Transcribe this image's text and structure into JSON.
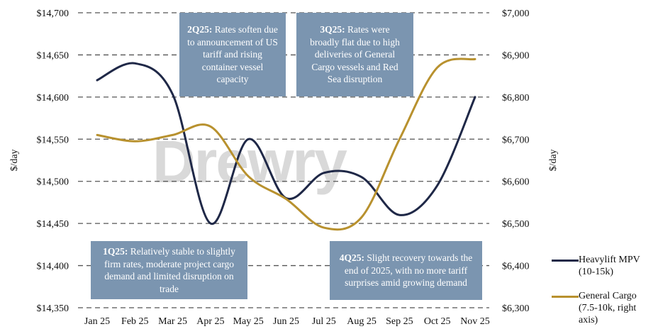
{
  "chart_data": {
    "type": "line",
    "title": "",
    "categories": [
      "Jan 25",
      "Feb 25",
      "Mar 25",
      "Apr 25",
      "May 25",
      "Jun 25",
      "Jul 25",
      "Aug 25",
      "Sep 25",
      "Oct 25",
      "Nov 25"
    ],
    "ylabel": "$/day",
    "y2label": "$/day",
    "ylim": [
      14350,
      14700
    ],
    "y2lim": [
      6300,
      7000
    ],
    "yticks": [
      "$14,350",
      "$14,400",
      "$14,450",
      "$14,500",
      "$14,550",
      "$14,600",
      "$14,650",
      "$14,700"
    ],
    "y2ticks": [
      "$6,300",
      "$6,400",
      "$6,500",
      "$6,600",
      "$6,700",
      "$6,800",
      "$6,900",
      "$7,000"
    ],
    "grid": true,
    "legend_position": "right",
    "series": [
      {
        "name": "Heavylift MPV (10-15k)",
        "axis": "left",
        "color": "#1f2847",
        "values": [
          14620,
          14640,
          14603,
          14450,
          14550,
          14480,
          14510,
          14505,
          14460,
          14495,
          14600
        ]
      },
      {
        "name": "General Cargo (7.5-10k, right axis)",
        "axis": "right",
        "color": "#b8912e",
        "values": [
          6710,
          6695,
          6710,
          6730,
          6612,
          6558,
          6490,
          6515,
          6700,
          6870,
          6890
        ]
      }
    ],
    "annotations": [
      {
        "prefix": "1Q25:",
        "text": " Relatively stable to slightly firm rates, moderate project cargo demand and limited disruption on trade"
      },
      {
        "prefix": "2Q25:",
        "text": " Rates soften due to announcement of US tariff and rising container vessel capacity"
      },
      {
        "prefix": "3Q25:",
        "text": " Rates were broadly flat due to high deliveries of General Cargo vessels and Red Sea disruption"
      },
      {
        "prefix": "4Q25:",
        "text": " Slight recovery towards the end of 2025, with no more tariff surprises amid growing demand"
      }
    ],
    "watermark": "Drewry"
  }
}
